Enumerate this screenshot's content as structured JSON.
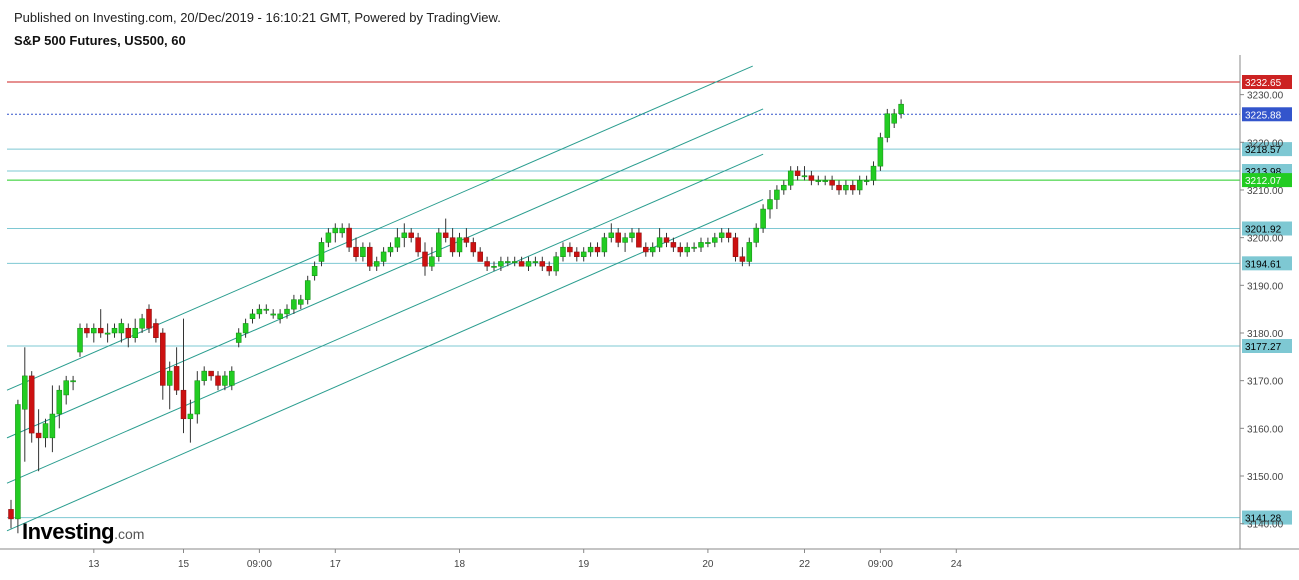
{
  "header": {
    "published": "Published on Investing.com, 20/Dec/2019 - 16:10:21 GMT, Powered by TradingView.",
    "title": "S&P 500 Futures, US500, 60"
  },
  "logo": {
    "main": "Investing",
    "suffix": ".com"
  },
  "colors": {
    "up": "#22cc22",
    "down": "#cc1111",
    "wick": "#333333",
    "channel": "#2a9d8f",
    "level": "#7ec8d3",
    "resistance": "#cc2222",
    "last": "#3355cc",
    "support_green": "#22cc22",
    "axis": "#888888"
  },
  "chart_data": {
    "type": "candlestick",
    "y_axis": {
      "min": 3137,
      "max": 3238,
      "ticks": [
        3140,
        3150,
        3160,
        3170,
        3180,
        3190,
        3200,
        3210,
        3220,
        3230
      ]
    },
    "y_tick_labels": [
      "3140.00",
      "3150.00",
      "3160.00",
      "3170.00",
      "3180.00",
      "3190.00",
      "3200.00",
      "3210.00",
      "3220.00",
      "3230.00"
    ],
    "x_axis": {
      "min": 0,
      "max": 170,
      "ticks": [
        {
          "x": 12,
          "label": "13"
        },
        {
          "x": 25,
          "label": "15"
        },
        {
          "x": 36,
          "label": "09:00"
        },
        {
          "x": 47,
          "label": "17"
        },
        {
          "x": 65,
          "label": "18"
        },
        {
          "x": 83,
          "label": "19"
        },
        {
          "x": 101,
          "label": "20"
        },
        {
          "x": 115,
          "label": "22"
        },
        {
          "x": 126,
          "label": "09:00"
        },
        {
          "x": 137,
          "label": "24"
        }
      ]
    },
    "candles": [
      {
        "o": 3143,
        "h": 3145,
        "l": 3139,
        "c": 3141
      },
      {
        "o": 3141,
        "h": 3166,
        "l": 3138,
        "c": 3165
      },
      {
        "o": 3164,
        "h": 3177,
        "l": 3153,
        "c": 3171
      },
      {
        "o": 3171,
        "h": 3172,
        "l": 3157,
        "c": 3159
      },
      {
        "o": 3159,
        "h": 3164,
        "l": 3151,
        "c": 3158
      },
      {
        "o": 3158,
        "h": 3162,
        "l": 3156,
        "c": 3161
      },
      {
        "o": 3158,
        "h": 3169,
        "l": 3155,
        "c": 3163
      },
      {
        "o": 3163,
        "h": 3169,
        "l": 3160,
        "c": 3168
      },
      {
        "o": 3167,
        "h": 3171,
        "l": 3165,
        "c": 3170
      },
      {
        "o": 3170,
        "h": 3171,
        "l": 3168,
        "c": 3170
      },
      {
        "o": 3176,
        "h": 3182,
        "l": 3175,
        "c": 3181
      },
      {
        "o": 3181,
        "h": 3182,
        "l": 3179,
        "c": 3180
      },
      {
        "o": 3180,
        "h": 3182,
        "l": 3178,
        "c": 3181
      },
      {
        "o": 3181,
        "h": 3185,
        "l": 3179,
        "c": 3180
      },
      {
        "o": 3180,
        "h": 3182,
        "l": 3178,
        "c": 3180
      },
      {
        "o": 3180,
        "h": 3182,
        "l": 3179,
        "c": 3181
      },
      {
        "o": 3180,
        "h": 3183,
        "l": 3178,
        "c": 3182
      },
      {
        "o": 3181,
        "h": 3182,
        "l": 3177,
        "c": 3179
      },
      {
        "o": 3179,
        "h": 3183,
        "l": 3178,
        "c": 3181
      },
      {
        "o": 3181,
        "h": 3184,
        "l": 3180,
        "c": 3183
      },
      {
        "o": 3185,
        "h": 3186,
        "l": 3180,
        "c": 3181
      },
      {
        "o": 3182,
        "h": 3183,
        "l": 3178,
        "c": 3179
      },
      {
        "o": 3180,
        "h": 3181,
        "l": 3166,
        "c": 3169
      },
      {
        "o": 3169,
        "h": 3174,
        "l": 3164,
        "c": 3172
      },
      {
        "o": 3173,
        "h": 3177,
        "l": 3167,
        "c": 3168
      },
      {
        "o": 3168,
        "h": 3183,
        "l": 3159,
        "c": 3162
      },
      {
        "o": 3162,
        "h": 3166,
        "l": 3157,
        "c": 3163
      },
      {
        "o": 3163,
        "h": 3172,
        "l": 3161,
        "c": 3170
      },
      {
        "o": 3170,
        "h": 3173,
        "l": 3169,
        "c": 3172
      },
      {
        "o": 3172,
        "h": 3172,
        "l": 3170,
        "c": 3171
      },
      {
        "o": 3171,
        "h": 3172,
        "l": 3168,
        "c": 3169
      },
      {
        "o": 3169,
        "h": 3172,
        "l": 3168,
        "c": 3171
      },
      {
        "o": 3169,
        "h": 3173,
        "l": 3168,
        "c": 3172
      },
      {
        "o": 3178,
        "h": 3181,
        "l": 3177,
        "c": 3180
      },
      {
        "o": 3180,
        "h": 3183,
        "l": 3179,
        "c": 3182
      },
      {
        "o": 3183,
        "h": 3185,
        "l": 3182,
        "c": 3184
      },
      {
        "o": 3184,
        "h": 3186,
        "l": 3183,
        "c": 3185
      },
      {
        "o": 3185,
        "h": 3186,
        "l": 3184,
        "c": 3185
      },
      {
        "o": 3184,
        "h": 3185,
        "l": 3183,
        "c": 3184
      },
      {
        "o": 3183,
        "h": 3185,
        "l": 3182,
        "c": 3184
      },
      {
        "o": 3184,
        "h": 3186,
        "l": 3183,
        "c": 3185
      },
      {
        "o": 3185,
        "h": 3188,
        "l": 3184,
        "c": 3187
      },
      {
        "o": 3186,
        "h": 3188,
        "l": 3185,
        "c": 3187
      },
      {
        "o": 3187,
        "h": 3192,
        "l": 3186,
        "c": 3191
      },
      {
        "o": 3192,
        "h": 3195,
        "l": 3191,
        "c": 3194
      },
      {
        "o": 3195,
        "h": 3200,
        "l": 3194,
        "c": 3199
      },
      {
        "o": 3199,
        "h": 3202,
        "l": 3198,
        "c": 3201
      },
      {
        "o": 3201,
        "h": 3203,
        "l": 3199,
        "c": 3202
      },
      {
        "o": 3201,
        "h": 3203,
        "l": 3200,
        "c": 3202
      },
      {
        "o": 3202,
        "h": 3203,
        "l": 3197,
        "c": 3198
      },
      {
        "o": 3198,
        "h": 3200,
        "l": 3195,
        "c": 3196
      },
      {
        "o": 3196,
        "h": 3199,
        "l": 3195,
        "c": 3198
      },
      {
        "o": 3198,
        "h": 3199,
        "l": 3193,
        "c": 3194
      },
      {
        "o": 3194,
        "h": 3196,
        "l": 3193,
        "c": 3195
      },
      {
        "o": 3195,
        "h": 3198,
        "l": 3194,
        "c": 3197
      },
      {
        "o": 3197,
        "h": 3199,
        "l": 3196,
        "c": 3198
      },
      {
        "o": 3198,
        "h": 3202,
        "l": 3197,
        "c": 3200
      },
      {
        "o": 3200,
        "h": 3203,
        "l": 3198,
        "c": 3201
      },
      {
        "o": 3201,
        "h": 3202,
        "l": 3199,
        "c": 3200
      },
      {
        "o": 3200,
        "h": 3201,
        "l": 3196,
        "c": 3197
      },
      {
        "o": 3197,
        "h": 3199,
        "l": 3192,
        "c": 3194
      },
      {
        "o": 3194,
        "h": 3198,
        "l": 3193,
        "c": 3196
      },
      {
        "o": 3196,
        "h": 3202,
        "l": 3195,
        "c": 3201
      },
      {
        "o": 3201,
        "h": 3204,
        "l": 3199,
        "c": 3200
      },
      {
        "o": 3200,
        "h": 3202,
        "l": 3196,
        "c": 3197
      },
      {
        "o": 3197,
        "h": 3201,
        "l": 3196,
        "c": 3200
      },
      {
        "o": 3200,
        "h": 3202,
        "l": 3198,
        "c": 3199
      },
      {
        "o": 3199,
        "h": 3200,
        "l": 3196,
        "c": 3197
      },
      {
        "o": 3197,
        "h": 3198,
        "l": 3195,
        "c": 3195
      },
      {
        "o": 3195,
        "h": 3196,
        "l": 3193,
        "c": 3194
      },
      {
        "o": 3194,
        "h": 3195,
        "l": 3193,
        "c": 3194
      },
      {
        "o": 3194,
        "h": 3196,
        "l": 3193,
        "c": 3195
      },
      {
        "o": 3195,
        "h": 3196,
        "l": 3194,
        "c": 3195
      },
      {
        "o": 3195,
        "h": 3196,
        "l": 3194,
        "c": 3195
      },
      {
        "o": 3195,
        "h": 3196,
        "l": 3194,
        "c": 3194
      },
      {
        "o": 3194,
        "h": 3196,
        "l": 3193,
        "c": 3195
      },
      {
        "o": 3195,
        "h": 3196,
        "l": 3194,
        "c": 3195
      },
      {
        "o": 3195,
        "h": 3196,
        "l": 3193,
        "c": 3194
      },
      {
        "o": 3194,
        "h": 3195,
        "l": 3192,
        "c": 3193
      },
      {
        "o": 3193,
        "h": 3197,
        "l": 3192,
        "c": 3196
      },
      {
        "o": 3196,
        "h": 3199,
        "l": 3195,
        "c": 3198
      },
      {
        "o": 3198,
        "h": 3199,
        "l": 3196,
        "c": 3197
      },
      {
        "o": 3197,
        "h": 3198,
        "l": 3195,
        "c": 3196
      },
      {
        "o": 3196,
        "h": 3198,
        "l": 3195,
        "c": 3197
      },
      {
        "o": 3197,
        "h": 3199,
        "l": 3196,
        "c": 3198
      },
      {
        "o": 3198,
        "h": 3199,
        "l": 3196,
        "c": 3197
      },
      {
        "o": 3197,
        "h": 3201,
        "l": 3196,
        "c": 3200
      },
      {
        "o": 3200,
        "h": 3203,
        "l": 3199,
        "c": 3201
      },
      {
        "o": 3201,
        "h": 3202,
        "l": 3198,
        "c": 3199
      },
      {
        "o": 3199,
        "h": 3201,
        "l": 3197,
        "c": 3200
      },
      {
        "o": 3200,
        "h": 3202,
        "l": 3199,
        "c": 3201
      },
      {
        "o": 3201,
        "h": 3202,
        "l": 3198,
        "c": 3198
      },
      {
        "o": 3198,
        "h": 3199,
        "l": 3196,
        "c": 3197
      },
      {
        "o": 3197,
        "h": 3199,
        "l": 3196,
        "c": 3198
      },
      {
        "o": 3198,
        "h": 3202,
        "l": 3197,
        "c": 3200
      },
      {
        "o": 3200,
        "h": 3201,
        "l": 3198,
        "c": 3199
      },
      {
        "o": 3199,
        "h": 3200,
        "l": 3197,
        "c": 3198
      },
      {
        "o": 3198,
        "h": 3199,
        "l": 3196,
        "c": 3197
      },
      {
        "o": 3197,
        "h": 3199,
        "l": 3196,
        "c": 3198
      },
      {
        "o": 3198,
        "h": 3199,
        "l": 3197,
        "c": 3198
      },
      {
        "o": 3198,
        "h": 3200,
        "l": 3197,
        "c": 3199
      },
      {
        "o": 3199,
        "h": 3200,
        "l": 3198,
        "c": 3199
      },
      {
        "o": 3199,
        "h": 3201,
        "l": 3198,
        "c": 3200
      },
      {
        "o": 3200,
        "h": 3202,
        "l": 3199,
        "c": 3201
      },
      {
        "o": 3201,
        "h": 3202,
        "l": 3199,
        "c": 3200
      },
      {
        "o": 3200,
        "h": 3201,
        "l": 3195,
        "c": 3196
      },
      {
        "o": 3196,
        "h": 3198,
        "l": 3194,
        "c": 3195
      },
      {
        "o": 3195,
        "h": 3200,
        "l": 3194,
        "c": 3199
      },
      {
        "o": 3199,
        "h": 3203,
        "l": 3198,
        "c": 3202
      },
      {
        "o": 3202,
        "h": 3207,
        "l": 3201,
        "c": 3206
      },
      {
        "o": 3206,
        "h": 3210,
        "l": 3204,
        "c": 3208
      },
      {
        "o": 3208,
        "h": 3211,
        "l": 3206,
        "c": 3210
      },
      {
        "o": 3210,
        "h": 3212,
        "l": 3209,
        "c": 3211
      },
      {
        "o": 3211,
        "h": 3215,
        "l": 3210,
        "c": 3214
      },
      {
        "o": 3214,
        "h": 3215,
        "l": 3212,
        "c": 3213
      },
      {
        "o": 3213,
        "h": 3215,
        "l": 3212,
        "c": 3213
      },
      {
        "o": 3213,
        "h": 3214,
        "l": 3211,
        "c": 3212
      },
      {
        "o": 3212,
        "h": 3213,
        "l": 3211,
        "c": 3212
      },
      {
        "o": 3212,
        "h": 3213,
        "l": 3211,
        "c": 3212
      },
      {
        "o": 3212,
        "h": 3213,
        "l": 3210,
        "c": 3211
      },
      {
        "o": 3211,
        "h": 3212,
        "l": 3209,
        "c": 3210
      },
      {
        "o": 3210,
        "h": 3212,
        "l": 3209,
        "c": 3211
      },
      {
        "o": 3211,
        "h": 3212,
        "l": 3209,
        "c": 3210
      },
      {
        "o": 3210,
        "h": 3213,
        "l": 3209,
        "c": 3212
      },
      {
        "o": 3212,
        "h": 3213,
        "l": 3211,
        "c": 3212
      },
      {
        "o": 3212,
        "h": 3216,
        "l": 3211,
        "c": 3215
      },
      {
        "o": 3215,
        "h": 3222,
        "l": 3214,
        "c": 3221
      },
      {
        "o": 3221,
        "h": 3227,
        "l": 3220,
        "c": 3226
      },
      {
        "o": 3224,
        "h": 3227,
        "l": 3223,
        "c": 3226
      },
      {
        "o": 3226,
        "h": 3229,
        "l": 3225,
        "c": 3228
      }
    ],
    "levels": [
      {
        "value": 3232.65,
        "label": "3232.65",
        "role": "resistance",
        "style": "solid"
      },
      {
        "value": 3225.88,
        "label": "3225.88",
        "role": "last",
        "style": "dotted"
      },
      {
        "value": 3218.57,
        "label": "3218.57",
        "role": "level",
        "style": "solid"
      },
      {
        "value": 3213.98,
        "label": "3213.98",
        "role": "level",
        "style": "solid"
      },
      {
        "value": 3212.07,
        "label": "3212.07",
        "role": "support_green",
        "style": "solid"
      },
      {
        "value": 3201.92,
        "label": "3201.92",
        "role": "level",
        "style": "solid"
      },
      {
        "value": 3194.61,
        "label": "3194.61",
        "role": "level",
        "style": "solid"
      },
      {
        "value": 3177.27,
        "label": "3177.27",
        "role": "level",
        "style": "solid"
      },
      {
        "value": 3141.28,
        "label": "3141.28",
        "role": "level",
        "style": "solid"
      }
    ],
    "channel_lines": [
      {
        "x1": 0,
        "y1": 3168.0,
        "x2": 107.5,
        "y2": 3236.0
      },
      {
        "x1": 0,
        "y1": 3158.0,
        "x2": 109.0,
        "y2": 3227.0
      },
      {
        "x1": 0,
        "y1": 3148.5,
        "x2": 109.0,
        "y2": 3217.5
      },
      {
        "x1": 0,
        "y1": 3138.5,
        "x2": 109.0,
        "y2": 3208.0
      }
    ]
  }
}
